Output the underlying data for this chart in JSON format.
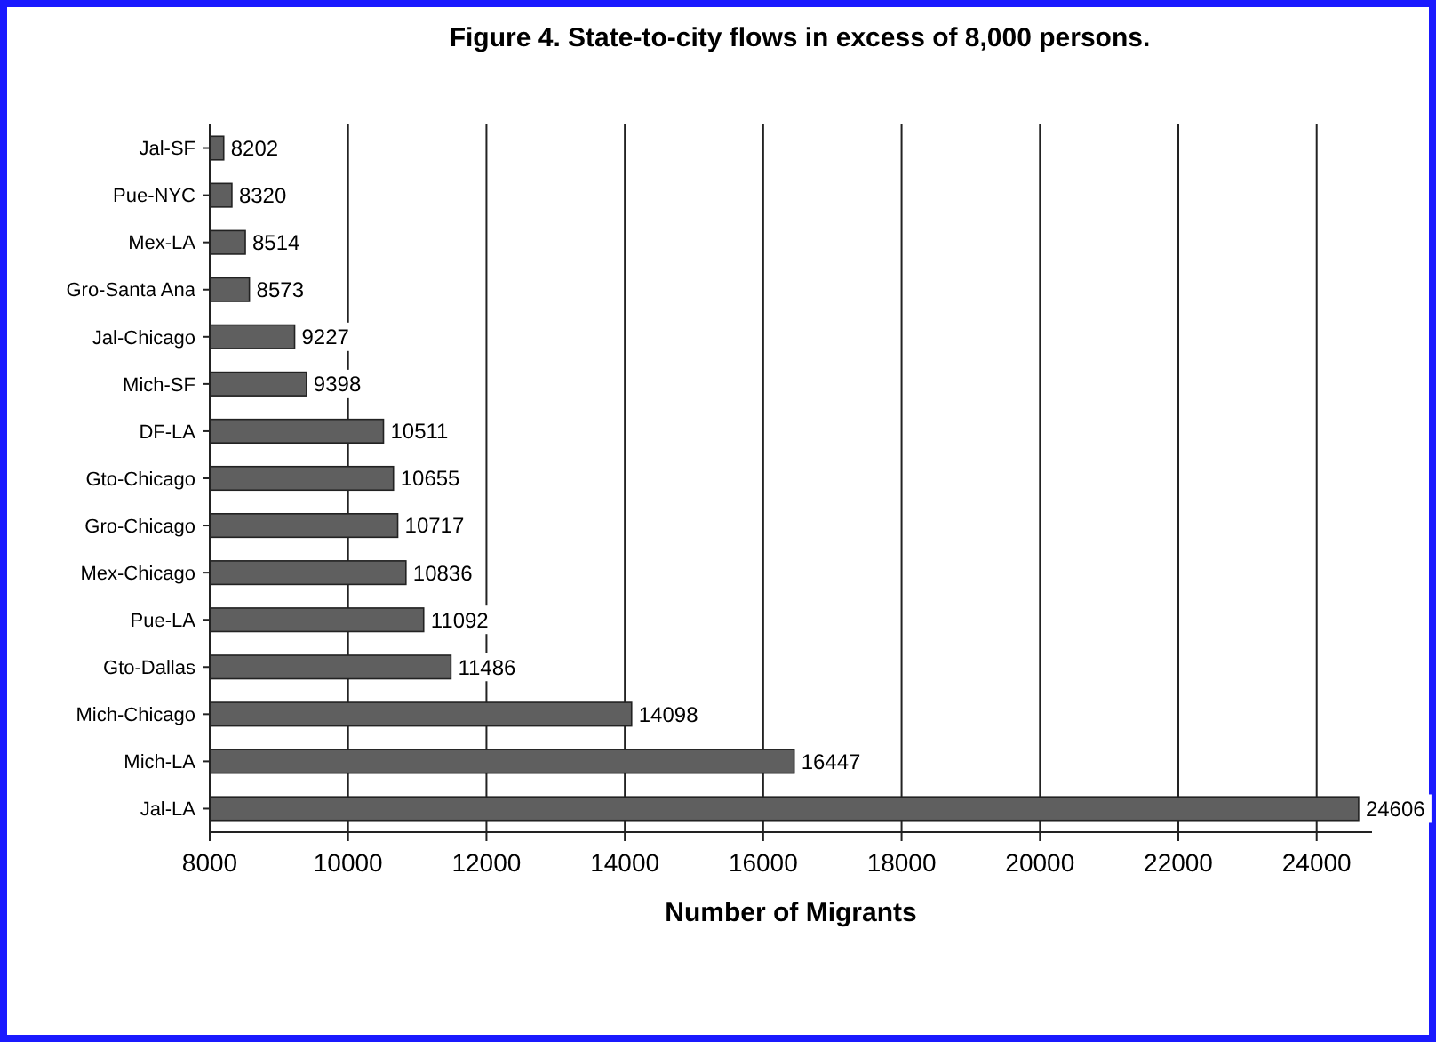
{
  "chart_data": {
    "type": "bar",
    "orientation": "horizontal",
    "title": "Figure 4.  State-to-city flows in excess of 8,000 persons.",
    "xlabel": "Number of Migrants",
    "categories": [
      "Jal-SF",
      "Pue-NYC",
      "Mex-LA",
      "Gro-Santa Ana",
      "Jal-Chicago",
      "Mich-SF",
      "DF-LA",
      "Gto-Chicago",
      "Gro-Chicago",
      "Mex-Chicago",
      "Pue-LA",
      "Gto-Dallas",
      "Mich-Chicago",
      "Mich-LA",
      "Jal-LA"
    ],
    "values": [
      8202,
      8320,
      8514,
      8573,
      9227,
      9398,
      10511,
      10655,
      10717,
      10836,
      11092,
      11486,
      14098,
      16447,
      24606
    ],
    "color": "#5f5f5f",
    "xlim": [
      8000,
      24800
    ],
    "xticks": [
      8000,
      10000,
      12000,
      14000,
      16000,
      18000,
      20000,
      22000,
      24000
    ],
    "grid": "x",
    "data_labels": true
  }
}
